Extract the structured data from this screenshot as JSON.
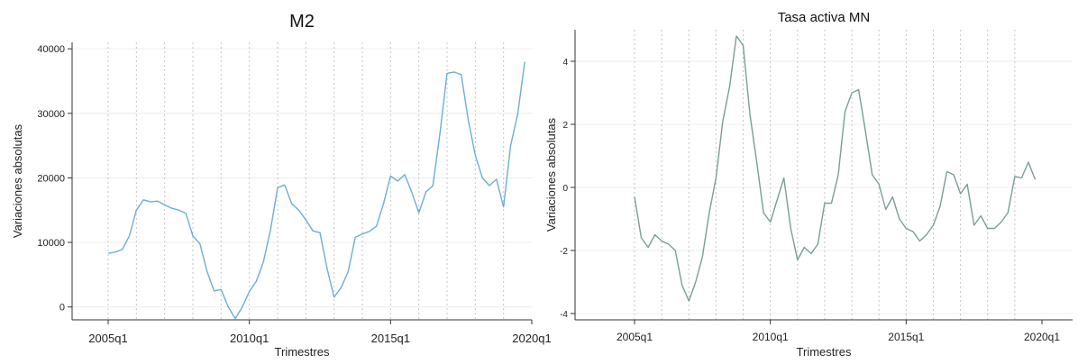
{
  "chart_data": [
    {
      "type": "line",
      "title": "M2",
      "xlabel": "Trimestres",
      "ylabel": "Variaciones absolutas",
      "xlim": [
        2005,
        2020
      ],
      "ylim": [
        -2000,
        41000
      ],
      "yticks": [
        0,
        10000,
        20000,
        30000,
        40000
      ],
      "ytick_labels": [
        "0",
        "10000",
        "20000",
        "30000",
        "40000"
      ],
      "xticks": [
        2005,
        2010,
        2015,
        2020
      ],
      "xtick_labels": [
        "2005q1",
        "2010q1",
        "2015q1",
        "2020q1"
      ],
      "vlines": [
        2005,
        2006,
        2007,
        2008,
        2009,
        2010,
        2011,
        2012,
        2013,
        2014,
        2015,
        2016,
        2017,
        2018,
        2019
      ],
      "grid": true,
      "line_color": "#6baed6",
      "series": [
        {
          "x": [
            2005,
            2005.25,
            2005.5,
            2005.75,
            2006,
            2006.25,
            2006.5,
            2006.75,
            2007,
            2007.25,
            2007.5,
            2007.75,
            2008,
            2008.25,
            2008.5,
            2008.75,
            2009,
            2009.25,
            2009.5,
            2009.75,
            2010,
            2010.25,
            2010.5,
            2010.75,
            2011,
            2011.25,
            2011.5,
            2011.75,
            2012,
            2012.25,
            2012.5,
            2012.75,
            2013,
            2013.25,
            2013.5,
            2013.75,
            2014,
            2014.25,
            2014.5,
            2014.75,
            2015,
            2015.25,
            2015.5,
            2015.75,
            2016,
            2016.25,
            2016.5,
            2016.75,
            2017,
            2017.25,
            2017.5,
            2017.75,
            2018,
            2018.25,
            2018.5,
            2018.75,
            2019,
            2019.25,
            2019.5,
            2019.75
          ],
          "values": [
            8300,
            8500,
            8900,
            11000,
            15000,
            16600,
            16300,
            16400,
            15800,
            15300,
            15000,
            14500,
            11000,
            9800,
            5500,
            2500,
            2700,
            0,
            -1800,
            0,
            2400,
            4000,
            7000,
            12000,
            18500,
            18900,
            16000,
            15000,
            13500,
            11800,
            11500,
            6000,
            1500,
            3000,
            5500,
            10800,
            11300,
            11700,
            12500,
            16000,
            20300,
            19500,
            20500,
            17800,
            14600,
            17800,
            18800,
            27000,
            36200,
            36400,
            36000,
            29000,
            23500,
            20000,
            18800,
            19800,
            15500,
            25000,
            29800,
            38000
          ]
        }
      ]
    },
    {
      "type": "line",
      "title": "Tasa activa MN",
      "xlabel": "Trimestres",
      "ylabel": "Variaciones absolutas",
      "xlim": [
        2005,
        2020
      ],
      "ylim": [
        -4.2,
        5
      ],
      "yticks": [
        -4,
        -2,
        0,
        2,
        4
      ],
      "ytick_labels": [
        "-4",
        "-2",
        "0",
        "2",
        "4"
      ],
      "xticks": [
        2005,
        2010,
        2015,
        2020
      ],
      "xtick_labels": [
        "2005q1",
        "2010q1",
        "2015q1",
        "2020q1"
      ],
      "vlines": [
        2005,
        2006,
        2007,
        2008,
        2009,
        2010,
        2011,
        2012,
        2013,
        2014,
        2015,
        2016,
        2017,
        2018,
        2019
      ],
      "grid": true,
      "line_color": "#7a9e9a",
      "series": [
        {
          "x": [
            2005,
            2005.25,
            2005.5,
            2005.75,
            2006,
            2006.25,
            2006.5,
            2006.75,
            2007,
            2007.25,
            2007.5,
            2007.75,
            2008,
            2008.25,
            2008.5,
            2008.75,
            2009,
            2009.25,
            2009.5,
            2009.75,
            2010,
            2010.25,
            2010.5,
            2010.75,
            2011,
            2011.25,
            2011.5,
            2011.75,
            2012,
            2012.25,
            2012.5,
            2012.75,
            2013,
            2013.25,
            2013.5,
            2013.75,
            2014,
            2014.25,
            2014.5,
            2014.75,
            2015,
            2015.25,
            2015.5,
            2015.75,
            2016,
            2016.25,
            2016.5,
            2016.75,
            2017,
            2017.25,
            2017.5,
            2017.75,
            2018,
            2018.25,
            2018.5,
            2018.75,
            2019,
            2019.25,
            2019.5,
            2019.75
          ],
          "values": [
            -0.3,
            -1.6,
            -1.9,
            -1.5,
            -1.7,
            -1.8,
            -2.0,
            -3.1,
            -3.6,
            -3.0,
            -2.2,
            -0.8,
            0.3,
            2.1,
            3.2,
            4.8,
            4.5,
            2.3,
            0.8,
            -0.8,
            -1.1,
            -0.4,
            0.3,
            -1.3,
            -2.3,
            -1.9,
            -2.1,
            -1.8,
            -0.5,
            -0.5,
            0.4,
            2.4,
            3.0,
            3.1,
            1.8,
            0.4,
            0.1,
            -0.7,
            -0.3,
            -1.0,
            -1.3,
            -1.4,
            -1.7,
            -1.5,
            -1.2,
            -0.6,
            0.5,
            0.4,
            -0.2,
            0.1,
            -1.2,
            -0.9,
            -1.3,
            -1.3,
            -1.1,
            -0.8,
            0.35,
            0.3,
            0.8,
            0.25
          ]
        }
      ]
    }
  ]
}
